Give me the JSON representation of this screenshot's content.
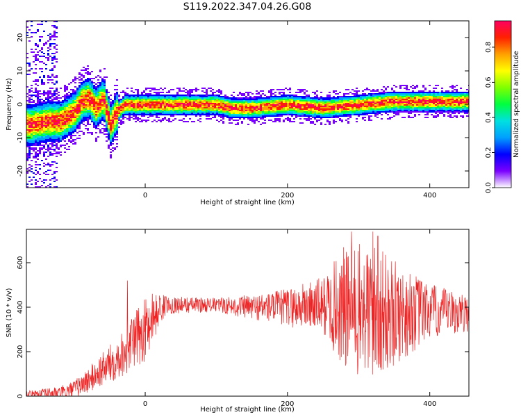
{
  "title": "S119.2022.347.04.26.G08",
  "chart_data": [
    {
      "type": "heatmap",
      "xlabel": "Height of straight line (km)",
      "ylabel": "Frequency (Hz)",
      "xlim": [
        -167,
        455
      ],
      "ylim": [
        -25,
        25
      ],
      "xticks": [
        0,
        200,
        400
      ],
      "xtick_labels": [
        "0",
        "200",
        "400"
      ],
      "yticks": [
        -20,
        -10,
        0,
        10,
        20
      ],
      "ytick_labels": [
        "-20",
        "-10",
        "0",
        "10",
        "20"
      ],
      "colorbar": {
        "label": "Normalized spectral amplitude",
        "range": [
          0,
          0.95
        ],
        "ticks": [
          0.0,
          0.2,
          0.4,
          0.6,
          0.8
        ],
        "tick_labels": [
          "0.0",
          "0.2",
          "0.4",
          "0.6",
          "0.8"
        ],
        "colormap": [
          "#ffffff",
          "#7a00ff",
          "#0000ff",
          "#00a0ff",
          "#00e0e0",
          "#00ff40",
          "#80ff00",
          "#ffff00",
          "#ffa000",
          "#ff2000",
          "#ff0060"
        ]
      },
      "ridge_frequency_hz": {
        "x": [
          -160,
          -140,
          -120,
          -100,
          -90,
          -80,
          -70,
          -60,
          -50,
          -40,
          -30,
          -20,
          0,
          100,
          120,
          150,
          200,
          250,
          300,
          350,
          400,
          455
        ],
        "y": [
          -6,
          -5,
          -5,
          -2,
          1,
          2,
          -1,
          2,
          -6,
          -2,
          0,
          0,
          0,
          0,
          -1,
          -1,
          0,
          -1,
          0,
          1,
          1,
          1
        ]
      },
      "grid": false
    },
    {
      "type": "line",
      "xlabel": "Height of straight line (km)",
      "ylabel": "SNR (10 * v/v)",
      "xlim": [
        -167,
        455
      ],
      "ylim": [
        0,
        750
      ],
      "xticks": [
        0,
        200,
        400
      ],
      "xtick_labels": [
        "0",
        "200",
        "400"
      ],
      "yticks": [
        0,
        200,
        400,
        600
      ],
      "ytick_labels": [
        "0",
        "200",
        "400",
        "600"
      ],
      "color": "#ee2222",
      "mean_trend": {
        "x": [
          -167,
          -120,
          -100,
          -80,
          -60,
          -40,
          -20,
          0,
          20,
          30,
          50,
          100,
          150,
          200,
          250,
          300,
          350,
          400,
          455
        ],
        "y": [
          10,
          12,
          30,
          70,
          120,
          170,
          230,
          300,
          390,
          410,
          410,
          410,
          400,
          400,
          410,
          380,
          370,
          380,
          370
        ]
      },
      "noise_amplitude": {
        "x": [
          -167,
          -100,
          -40,
          0,
          30,
          100,
          180,
          250,
          280,
          320,
          350,
          400,
          455
        ],
        "y": [
          8,
          25,
          60,
          90,
          25,
          20,
          45,
          80,
          180,
          200,
          150,
          80,
          50
        ]
      },
      "spikes": {
        "x": [
          -25,
          -18,
          10,
          290,
          320,
          327
        ],
        "y": [
          520,
          250,
          460,
          740,
          740,
          720
        ]
      },
      "grid": false
    }
  ]
}
